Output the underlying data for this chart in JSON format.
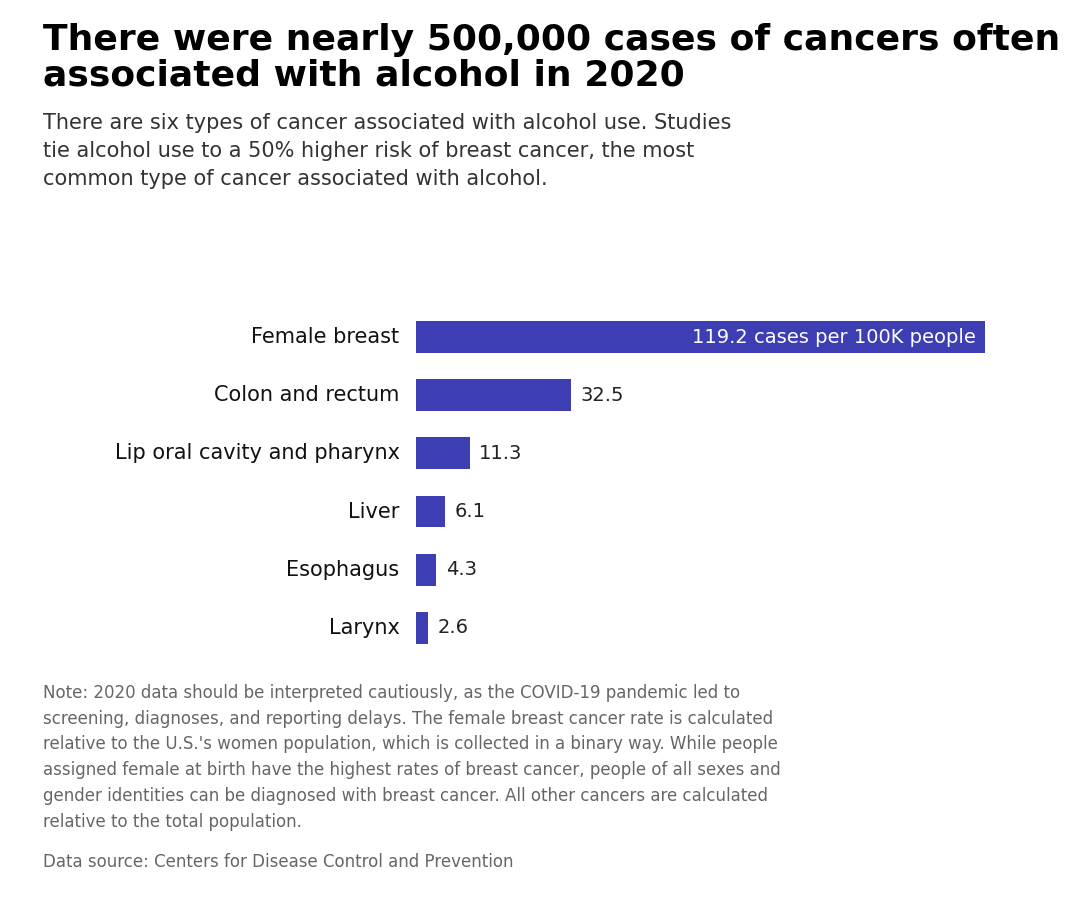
{
  "title_line1": "There were nearly 500,000 cases of cancers often",
  "title_line2": "associated with alcohol in 2020",
  "subtitle": "There are six types of cancer associated with alcohol use. Studies\ntie alcohol use to a 50% higher risk of breast cancer, the most\ncommon type of cancer associated with alcohol.",
  "categories": [
    "Female breast",
    "Colon and rectum",
    "Lip oral cavity and pharynx",
    "Liver",
    "Esophagus",
    "Larynx"
  ],
  "values": [
    119.2,
    32.5,
    11.3,
    6.1,
    4.3,
    2.6
  ],
  "bar_color": "#3d3db4",
  "bar_label_color_inside": "#ffffff",
  "bar_label_color_outside": "#222222",
  "label_color": "#111111",
  "background_color": "#ffffff",
  "note_text": "Note: 2020 data should be interpreted cautiously, as the COVID-19 pandemic led to\nscreening, diagnoses, and reporting delays. The female breast cancer rate is calculated\nrelative to the U.S.'s women population, which is collected in a binary way. While people\nassigned female at birth have the highest rates of breast cancer, people of all sexes and\ngender identities can be diagnosed with breast cancer. All other cancers are calculated\nrelative to the total population.",
  "source_text": "Data source: Centers for Disease Control and Prevention",
  "value_labels": [
    "119.2 cases per 100K people",
    "32.5",
    "11.3",
    "6.1",
    "4.3",
    "2.6"
  ],
  "xlim": [
    0,
    130
  ],
  "title_fontsize": 26,
  "subtitle_fontsize": 15,
  "label_fontsize": 15,
  "value_fontsize": 14,
  "note_fontsize": 12,
  "source_fontsize": 12
}
